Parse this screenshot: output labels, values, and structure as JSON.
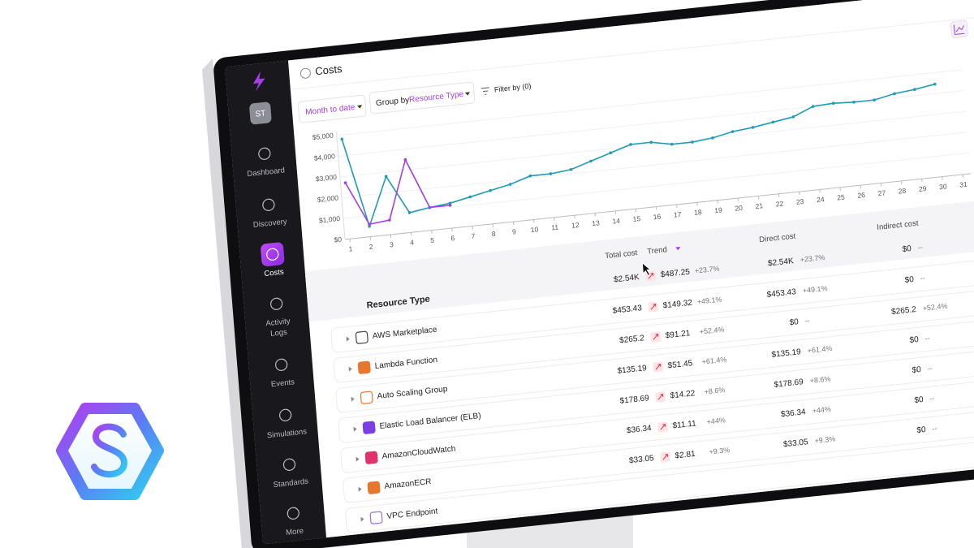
{
  "sidebar": {
    "avatar": "ST",
    "items": [
      {
        "lines": [
          "Dashboard"
        ]
      },
      {
        "lines": [
          "Discovery"
        ]
      },
      {
        "lines": [
          "Costs"
        ]
      },
      {
        "lines": [
          "Activity",
          "Logs"
        ]
      },
      {
        "lines": [
          "Events"
        ]
      },
      {
        "lines": [
          "Simulations"
        ]
      },
      {
        "lines": [
          "Standards"
        ]
      },
      {
        "lines": [
          "More"
        ]
      }
    ]
  },
  "header": {
    "title": "Costs",
    "date_range": "Month to date",
    "group_by_label": "Group by",
    "group_by_value": "Resource Type",
    "filter": "Filter by (0)"
  },
  "chart": {
    "type": "line",
    "x": [
      1,
      2,
      3,
      4,
      5,
      6,
      7,
      8,
      9,
      10,
      11,
      12,
      13,
      14,
      15,
      16,
      17,
      18,
      19,
      20,
      21,
      22,
      23,
      24,
      25,
      26,
      27,
      28,
      29,
      30
    ],
    "series": [
      {
        "color": "#1f9bb5",
        "values": [
          4800,
          500,
          2800,
          950,
          1100,
          1200,
          1400,
          1600,
          1800,
          2100,
          2100,
          2200,
          2500,
          2800,
          3100,
          3100,
          2900,
          2900,
          3000,
          3200,
          3300,
          3450,
          3600,
          4000,
          4050,
          4000,
          4000,
          4200,
          4300,
          4450
        ]
      },
      {
        "color": "#a43ee6",
        "values": [
          2700,
          600,
          700,
          3500,
          1100,
          1100,
          null,
          null,
          null,
          null,
          null,
          null,
          null,
          null,
          null,
          null,
          null,
          null,
          null,
          null,
          null,
          null,
          null,
          null,
          null,
          null,
          null,
          null,
          null,
          null
        ]
      }
    ],
    "xlim": [
      1,
      31
    ],
    "xticks": [
      1,
      2,
      3,
      4,
      5,
      6,
      7,
      8,
      9,
      10,
      11,
      12,
      13,
      14,
      15,
      16,
      17,
      18,
      19,
      20,
      21,
      22,
      23,
      24,
      25,
      26,
      27,
      28,
      29,
      30,
      31
    ],
    "ylim": [
      0,
      5000
    ],
    "yticks": [
      {
        "value": 0,
        "label": "$0"
      },
      {
        "value": 1000,
        "label": "$1,000"
      },
      {
        "value": 2000,
        "label": "$2,000"
      },
      {
        "value": 3000,
        "label": "$3,000"
      },
      {
        "value": 4000,
        "label": "$4,000"
      },
      {
        "value": 5000,
        "label": "$5,000"
      }
    ]
  },
  "table": {
    "columns": [
      "Resource Type",
      "Total cost",
      "Trend",
      "Direct cost",
      "Indirect cost"
    ],
    "summary": {
      "total": "$2.54K",
      "trend": "$487.25",
      "trend_pct": "+23.7%",
      "direct": "$2.54K",
      "direct_pct": "+23.7%",
      "indirect": "$0",
      "indirect_pct": "--"
    },
    "rows": [
      {
        "name": "AWS Marketplace",
        "total": "$453.43",
        "trend": "$149.32",
        "trend_pct": "+49.1%",
        "direct": "$453.43",
        "direct_pct": "+49.1%",
        "indirect": "$0",
        "indirect_pct": "--"
      },
      {
        "name": "Lambda Function",
        "total": "$265.2",
        "trend": "$91.21",
        "trend_pct": "+52.4%",
        "direct": "$0",
        "direct_pct": "--",
        "indirect": "$265.2",
        "indirect_pct": "+52.4%"
      },
      {
        "name": "Auto Scaling Group",
        "total": "$135.19",
        "trend": "$51.45",
        "trend_pct": "+61.4%",
        "direct": "$135.19",
        "direct_pct": "+61.4%",
        "indirect": "$0",
        "indirect_pct": "--"
      },
      {
        "name": "Elastic Load Balancer (ELB)",
        "total": "$178.69",
        "trend": "$14.22",
        "trend_pct": "+8.6%",
        "direct": "$178.69",
        "direct_pct": "+8.6%",
        "indirect": "$0",
        "indirect_pct": "--"
      },
      {
        "name": "AmazonCloudWatch",
        "total": "$36.34",
        "trend": "$11.11",
        "trend_pct": "+44%",
        "direct": "$36.34",
        "direct_pct": "+44%",
        "indirect": "$0",
        "indirect_pct": "--"
      },
      {
        "name": "AmazonECR",
        "total": "$33.05",
        "trend": "$2.81",
        "trend_pct": "+9.3%",
        "direct": "$33.05",
        "direct_pct": "+9.3%",
        "indirect": "$0",
        "indirect_pct": "--"
      },
      {
        "name": "VPC Endpoint"
      }
    ]
  }
}
